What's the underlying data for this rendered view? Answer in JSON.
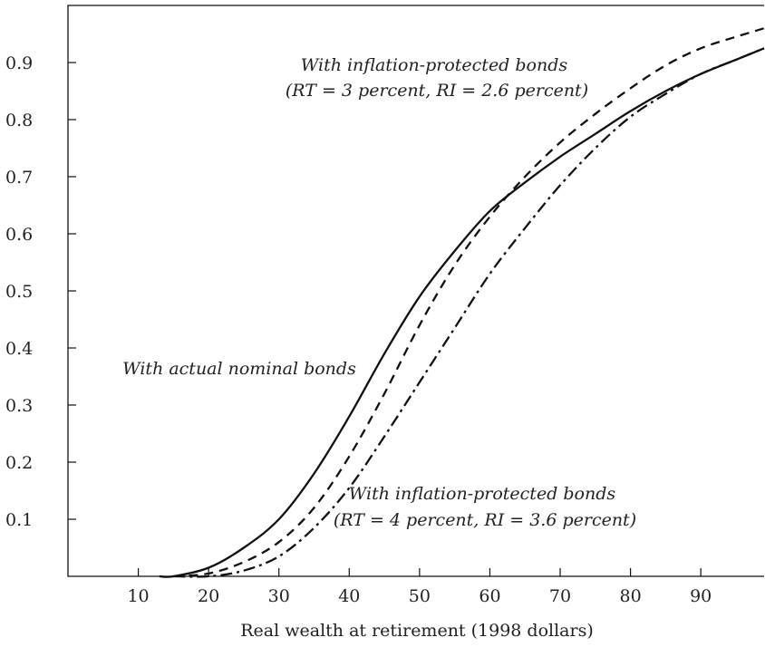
{
  "chart_data": {
    "type": "line",
    "title": "",
    "xlabel": "Real wealth at retirement (1998 dollars)",
    "ylabel": "",
    "xlim": [
      0,
      99
    ],
    "ylim": [
      0,
      1.0
    ],
    "x_ticks": [
      10,
      20,
      30,
      40,
      50,
      60,
      70,
      80,
      90
    ],
    "y_ticks": [
      0.1,
      0.2,
      0.3,
      0.4,
      0.5,
      0.6,
      0.7,
      0.8,
      0.9
    ],
    "grid": false,
    "legend": "none",
    "series": [
      {
        "style": "solid",
        "x": [
          13,
          15,
          20,
          25,
          30,
          35,
          40,
          45,
          50,
          55,
          60,
          65,
          70,
          75,
          80,
          85,
          90,
          95,
          99
        ],
        "y": [
          0.0,
          0.0,
          0.015,
          0.05,
          0.1,
          0.18,
          0.28,
          0.39,
          0.49,
          0.57,
          0.64,
          0.69,
          0.735,
          0.775,
          0.815,
          0.85,
          0.88,
          0.905,
          0.925
        ]
      },
      {
        "style": "dashed",
        "x": [
          15,
          20,
          25,
          30,
          35,
          40,
          45,
          50,
          55,
          60,
          65,
          70,
          75,
          80,
          85,
          90,
          95,
          99
        ],
        "y": [
          0.0,
          0.005,
          0.025,
          0.06,
          0.12,
          0.21,
          0.32,
          0.44,
          0.545,
          0.63,
          0.7,
          0.76,
          0.81,
          0.855,
          0.895,
          0.925,
          0.945,
          0.96
        ]
      },
      {
        "style": "dashdot",
        "x": [
          15,
          20,
          25,
          30,
          35,
          40,
          45,
          50,
          55,
          60,
          65,
          70,
          75,
          80,
          85,
          90,
          95,
          99
        ],
        "y": [
          0.0,
          0.0,
          0.01,
          0.035,
          0.085,
          0.155,
          0.245,
          0.34,
          0.435,
          0.53,
          0.61,
          0.685,
          0.75,
          0.805,
          0.845,
          0.88,
          0.905,
          0.925
        ]
      }
    ],
    "annotations": [
      {
        "lines": [
          "With inflation-protected bonds",
          "(RT = 3 percent, RI = 2.6 percent)"
        ],
        "near": "top-center"
      },
      {
        "lines": [
          "With actual nominal bonds"
        ],
        "near": "middle-left"
      },
      {
        "lines": [
          "With inflation-protected bonds",
          "(RT = 4 percent, RI = 3.6 percent)"
        ],
        "near": "bottom-right"
      }
    ]
  }
}
